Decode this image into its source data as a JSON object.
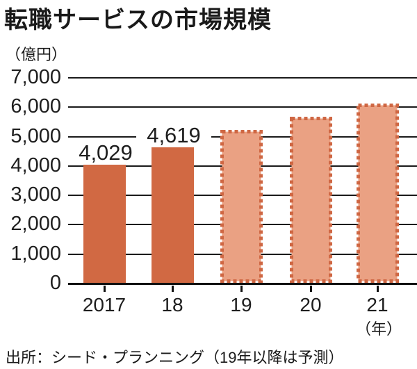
{
  "chart_data": {
    "type": "bar",
    "title": "転職サービスの市場規模",
    "unit_label": "（億円）",
    "xaxis_suffix": "（年）",
    "source": "出所：シード・プランニング（19年以降は予測）",
    "categories": [
      "2017",
      "18",
      "19",
      "20",
      "21"
    ],
    "values": [
      4029,
      4619,
      5200,
      5650,
      6100
    ],
    "value_labels": [
      "4,029",
      "4,619",
      "",
      "",
      ""
    ],
    "forecast": [
      false,
      false,
      true,
      true,
      true
    ],
    "ylim": [
      0,
      7000
    ],
    "yticks": [
      0,
      1000,
      2000,
      3000,
      4000,
      5000,
      6000,
      7000
    ],
    "ytick_labels": [
      "0",
      "1,000",
      "2,000",
      "3,000",
      "4,000",
      "5,000",
      "6,000",
      "7,000"
    ],
    "grid": "horizontal",
    "legend_position": "none",
    "colors": {
      "bar_actual": "#d16943",
      "forecast_fill": "#eaa183",
      "forecast_border": "#cf6743",
      "grid": "#1a1a1a",
      "text": "#1e1e1e"
    }
  }
}
